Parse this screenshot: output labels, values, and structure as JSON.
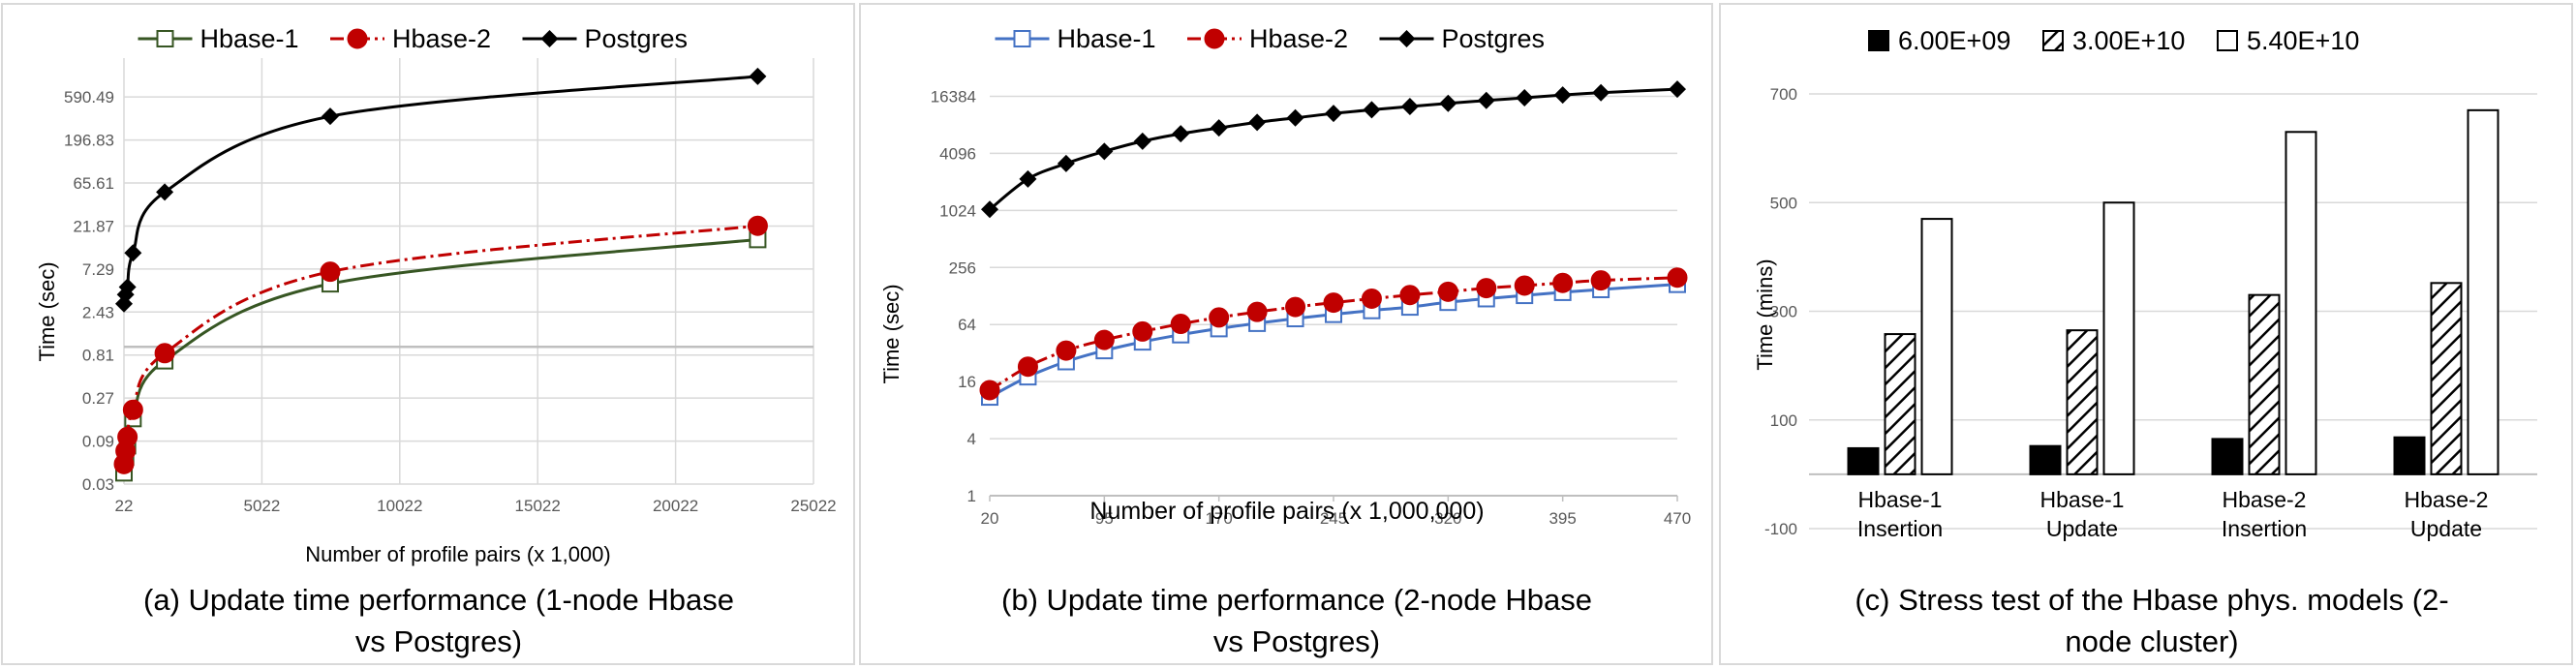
{
  "chart_data": [
    {
      "type": "line",
      "panel": "a",
      "caption": "(a) Update time performance (1-node Hbase vs Postgres)",
      "caption_lines": [
        "(a) Update time performance (1-node Hbase",
        "vs Postgres)"
      ],
      "xlabel": "Number of profile pairs (x 1,000)",
      "ylabel": "Time (sec)",
      "y_scale": "log3",
      "xlim": [
        22,
        25022
      ],
      "ylim": [
        0.03,
        1594
      ],
      "x_ticks": [
        "22",
        "5022",
        "10022",
        "15022",
        "20022",
        "25022"
      ],
      "x_tick_values": [
        22,
        5022,
        10022,
        15022,
        20022,
        25022
      ],
      "y_ticks": [
        "0.03",
        "0.09",
        "0.27",
        "0.81",
        "2.43",
        "7.29",
        "21.87",
        "65.61",
        "196.83",
        "590.49"
      ],
      "y_tick_values": [
        0.03,
        0.09,
        0.27,
        0.81,
        2.43,
        7.29,
        21.87,
        65.61,
        196.83,
        590.49
      ],
      "legend_position": "top",
      "series": [
        {
          "name": "Hbase-1",
          "color": "#375623",
          "marker": "square-open",
          "dash": "solid",
          "x": [
            22,
            80,
            150,
            350,
            1500,
            7500,
            23000
          ],
          "y": [
            0.04,
            0.06,
            0.08,
            0.16,
            0.7,
            5.0,
            15.5
          ]
        },
        {
          "name": "Hbase-2",
          "color": "#c00000",
          "marker": "circle",
          "dash": "dashdot",
          "x": [
            22,
            80,
            150,
            350,
            1500,
            7500,
            23000
          ],
          "y": [
            0.05,
            0.07,
            0.1,
            0.2,
            0.85,
            6.8,
            22.0
          ]
        },
        {
          "name": "Postgres",
          "color": "#000000",
          "marker": "diamond",
          "dash": "solid",
          "x": [
            22,
            80,
            150,
            350,
            1500,
            7500,
            23000
          ],
          "y": [
            3.0,
            3.8,
            4.6,
            11.0,
            52.0,
            360.0,
            1000.0
          ]
        }
      ]
    },
    {
      "type": "line",
      "panel": "b",
      "caption": "(b) Update time performance (2-node Hbase vs Postgres)",
      "caption_lines": [
        "(b) Update time performance (2-node Hbase",
        "vs Postgres)"
      ],
      "xlabel": "Number of profile pairs (x 1,000,000)",
      "ylabel": "Time (sec)",
      "y_scale": "log2",
      "xlim": [
        20,
        470
      ],
      "ylim": [
        1,
        32768
      ],
      "x_ticks": [
        "20",
        "95",
        "170",
        "245",
        "320",
        "395",
        "470"
      ],
      "x_tick_values": [
        20,
        95,
        170,
        245,
        320,
        395,
        470
      ],
      "y_ticks": [
        "1",
        "4",
        "16",
        "64",
        "256",
        "1024",
        "4096",
        "16384"
      ],
      "y_tick_values": [
        1,
        4,
        16,
        64,
        256,
        1024,
        4096,
        16384
      ],
      "legend_position": "top",
      "series": [
        {
          "name": "Hbase-1",
          "color": "#4472c4",
          "marker": "square-open",
          "dash": "solid",
          "x": [
            20,
            45,
            70,
            95,
            120,
            145,
            170,
            195,
            220,
            245,
            270,
            295,
            320,
            345,
            370,
            395,
            420,
            470
          ],
          "y": [
            11,
            18,
            26,
            34,
            42,
            50,
            58,
            66,
            74,
            82,
            90,
            98,
            110,
            120,
            130,
            140,
            150,
            170
          ]
        },
        {
          "name": "Hbase-2",
          "color": "#c00000",
          "marker": "circle",
          "dash": "dashdot",
          "x": [
            20,
            45,
            70,
            95,
            120,
            145,
            170,
            195,
            220,
            245,
            270,
            295,
            320,
            345,
            370,
            395,
            420,
            470
          ],
          "y": [
            13,
            23,
            34,
            44,
            54,
            65,
            76,
            87,
            98,
            109,
            120,
            131,
            142,
            155,
            165,
            176,
            187,
            200
          ]
        },
        {
          "name": "Postgres",
          "color": "#000000",
          "marker": "diamond",
          "dash": "solid",
          "x": [
            20,
            45,
            70,
            95,
            120,
            145,
            170,
            195,
            220,
            245,
            270,
            295,
            320,
            345,
            370,
            395,
            420,
            470
          ],
          "y": [
            1050,
            2200,
            3200,
            4300,
            5500,
            6600,
            7600,
            8700,
            9700,
            10800,
            11800,
            12800,
            13800,
            14800,
            15800,
            16900,
            17900,
            19500
          ]
        }
      ]
    },
    {
      "type": "bar",
      "panel": "c",
      "caption": "(c) Stress test of the Hbase phys. models (2-node cluster)",
      "caption_lines": [
        "(c) Stress test of the Hbase phys. models (2-",
        "node cluster)"
      ],
      "xlabel": "",
      "ylabel": "Time (mins)",
      "ylim": [
        -100,
        700
      ],
      "y_ticks": [
        "-100",
        "100",
        "300",
        "500",
        "700"
      ],
      "y_tick_values": [
        -100,
        100,
        300,
        500,
        700
      ],
      "categories": [
        [
          "Hbase-1",
          "Insertion"
        ],
        [
          "Hbase-1",
          "Update"
        ],
        [
          "Hbase-2",
          "Insertion"
        ],
        [
          "Hbase-2",
          "Update"
        ]
      ],
      "legend_position": "top",
      "series": [
        {
          "name": "6.00E+09",
          "fill": "solid-black",
          "values": [
            48,
            52,
            65,
            68
          ]
        },
        {
          "name": "3.00E+10",
          "fill": "hatched",
          "values": [
            258,
            265,
            330,
            352
          ]
        },
        {
          "name": "5.40E+10",
          "fill": "white",
          "values": [
            470,
            500,
            630,
            670
          ]
        }
      ]
    }
  ]
}
